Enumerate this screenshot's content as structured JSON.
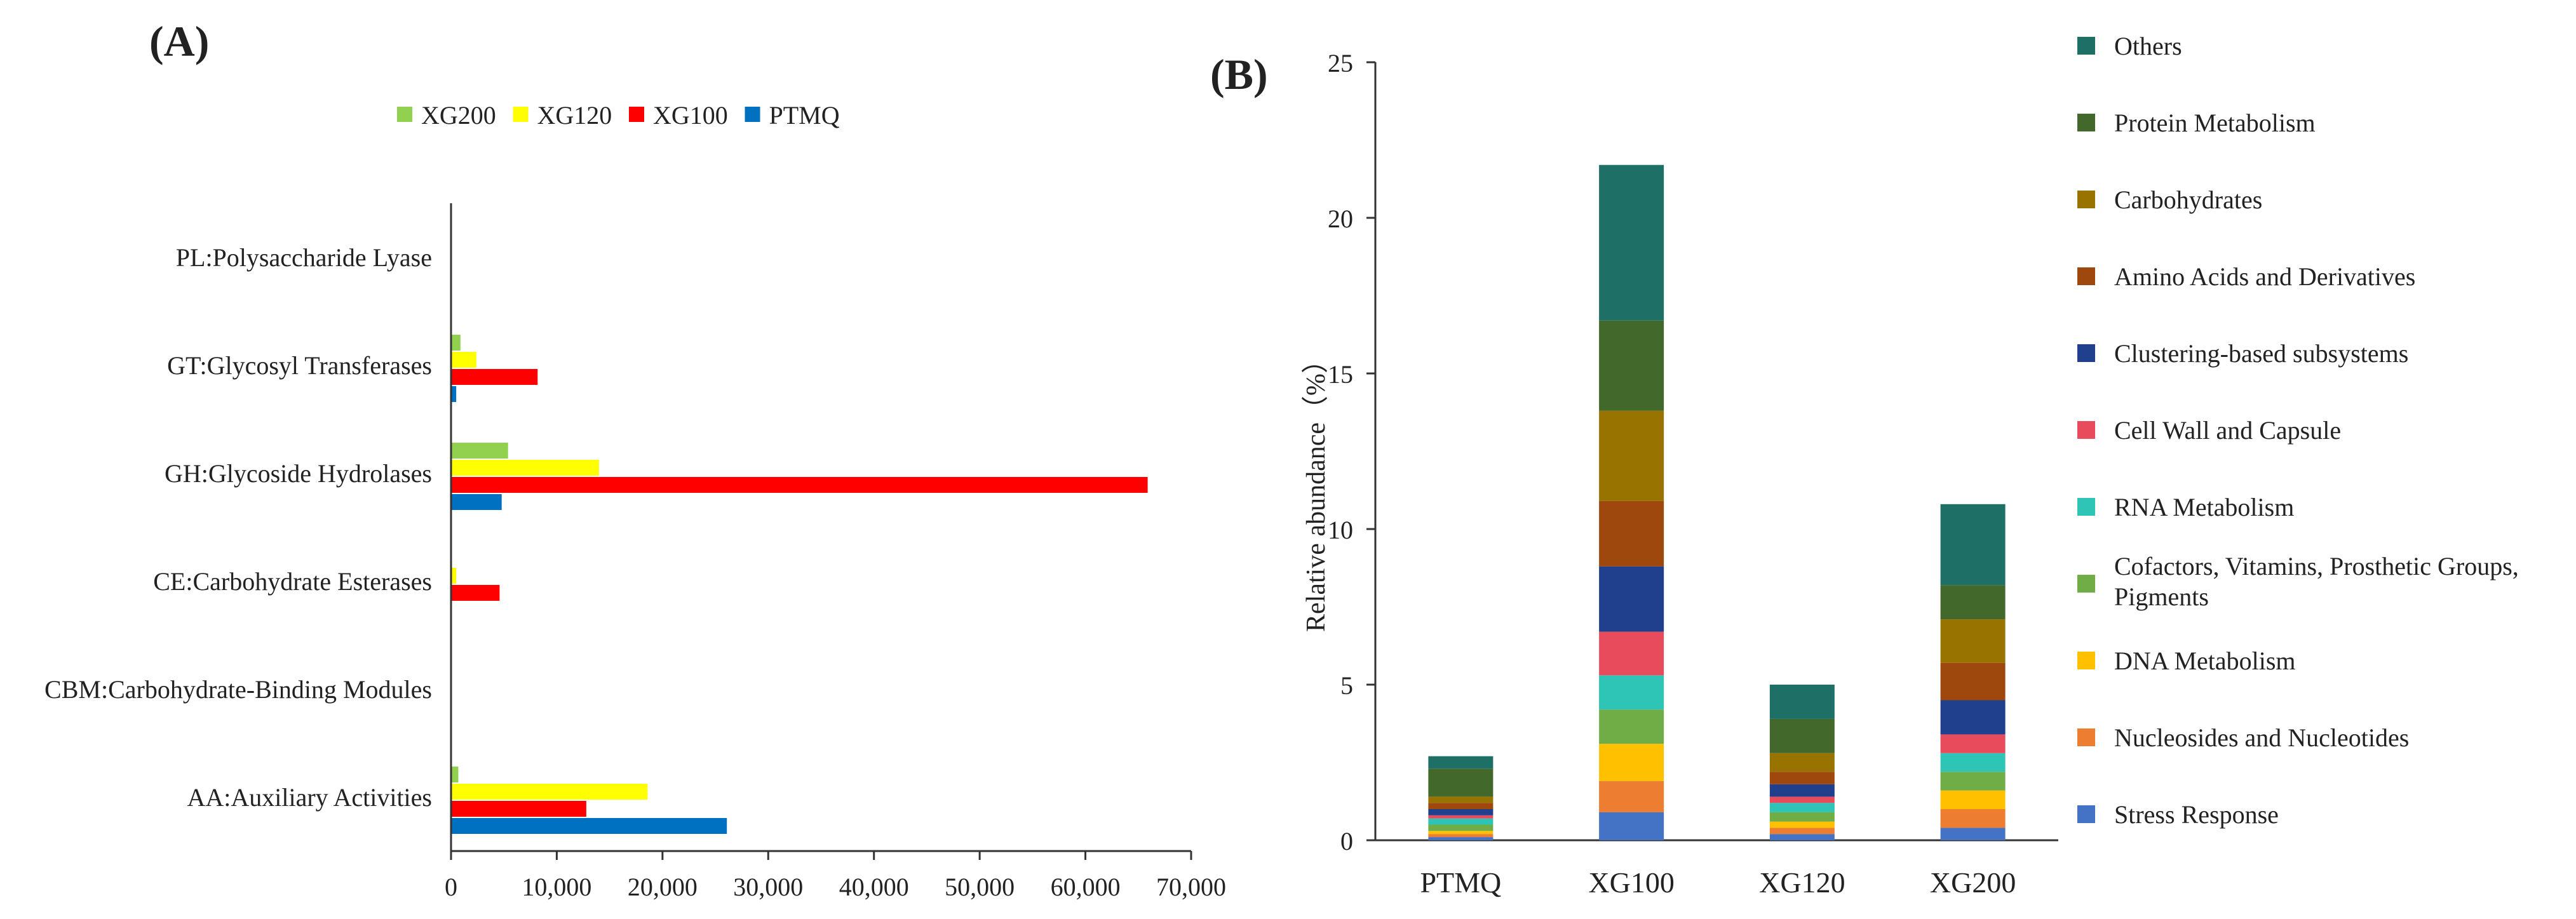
{
  "chart_data": [
    {
      "panel": "(A)",
      "type": "bar",
      "orientation": "horizontal",
      "categories": [
        "PL:Polysaccharide Lyase",
        "GT:Glycosyl Transferases",
        "GH:Glycoside Hydrolases",
        "CE:Carbohydrate Esterases",
        "CBM:Carbohydrate-Binding Modules",
        "AA:Auxiliary Activities"
      ],
      "series": [
        {
          "name": "XG200",
          "color": "#92d050",
          "values": [
            0,
            800,
            5300,
            0,
            0,
            600
          ]
        },
        {
          "name": "XG120",
          "color": "#ffff00",
          "values": [
            0,
            2300,
            13900,
            400,
            0,
            18500
          ]
        },
        {
          "name": "XG100",
          "color": "#ff0000",
          "values": [
            0,
            8100,
            65800,
            4500,
            0,
            12700
          ]
        },
        {
          "name": "PTMQ",
          "color": "#0070c0",
          "values": [
            0,
            400,
            4700,
            0,
            0,
            26000
          ]
        }
      ],
      "legend_order": [
        "XG200",
        "XG120",
        "XG100",
        "PTMQ"
      ],
      "xlim": [
        0,
        70000
      ],
      "xticks": [
        0,
        10000,
        20000,
        30000,
        40000,
        50000,
        60000,
        70000
      ],
      "xtick_labels": [
        "0",
        "10,000",
        "20,000",
        "30,000",
        "40,000",
        "50,000",
        "60,000",
        "70,000"
      ],
      "legend_position": "top"
    },
    {
      "panel": "(B)",
      "type": "bar",
      "stacked": true,
      "categories": [
        "PTMQ",
        "XG100",
        "XG120",
        "XG200"
      ],
      "ylabel": "Relative abundance（%）",
      "ylim": [
        0,
        25
      ],
      "yticks": [
        0,
        5,
        10,
        15,
        20,
        25
      ],
      "series": [
        {
          "name": "Stress Response",
          "color": "#4472c4",
          "values": [
            0.1,
            0.9,
            0.2,
            0.4
          ]
        },
        {
          "name": "Nucleosides and Nucleotides",
          "color": "#ed7d31",
          "values": [
            0.1,
            1.0,
            0.2,
            0.6
          ]
        },
        {
          "name": "DNA Metabolism",
          "color": "#ffc000",
          "values": [
            0.1,
            1.2,
            0.2,
            0.6
          ]
        },
        {
          "name": "Cofactors, Vitamins, Prosthetic Groups, Pigments",
          "color": "#70ad47",
          "values": [
            0.2,
            1.1,
            0.3,
            0.6
          ]
        },
        {
          "name": "RNA Metabolism",
          "color": "#2ec4b6",
          "values": [
            0.2,
            1.1,
            0.3,
            0.6
          ]
        },
        {
          "name": "Cell Wall and Capsule",
          "color": "#e84c5c",
          "values": [
            0.1,
            1.4,
            0.2,
            0.6
          ]
        },
        {
          "name": "Clustering-based subsystems",
          "color": "#203f8c",
          "values": [
            0.2,
            2.1,
            0.4,
            1.1
          ]
        },
        {
          "name": "Amino Acids and Derivatives",
          "color": "#9e480e",
          "values": [
            0.2,
            2.1,
            0.4,
            1.2
          ]
        },
        {
          "name": "Carbohydrates",
          "color": "#997300",
          "values": [
            0.2,
            2.9,
            0.6,
            1.4
          ]
        },
        {
          "name": "Protein Metabolism",
          "color": "#43682b",
          "values": [
            0.9,
            2.9,
            1.1,
            1.1
          ]
        },
        {
          "name": "Others",
          "color": "#1e7066",
          "values": [
            0.4,
            5.0,
            1.1,
            2.6
          ]
        }
      ],
      "legend_order": [
        "Others",
        "Protein Metabolism",
        "Carbohydrates",
        "Amino Acids and Derivatives",
        "Clustering-based subsystems",
        "Cell Wall and Capsule",
        "RNA Metabolism",
        "Cofactors, Vitamins, Prosthetic Groups, Pigments",
        "DNA Metabolism",
        "Nucleosides and Nucleotides",
        "Stress Response"
      ],
      "legend_position": "right"
    }
  ]
}
